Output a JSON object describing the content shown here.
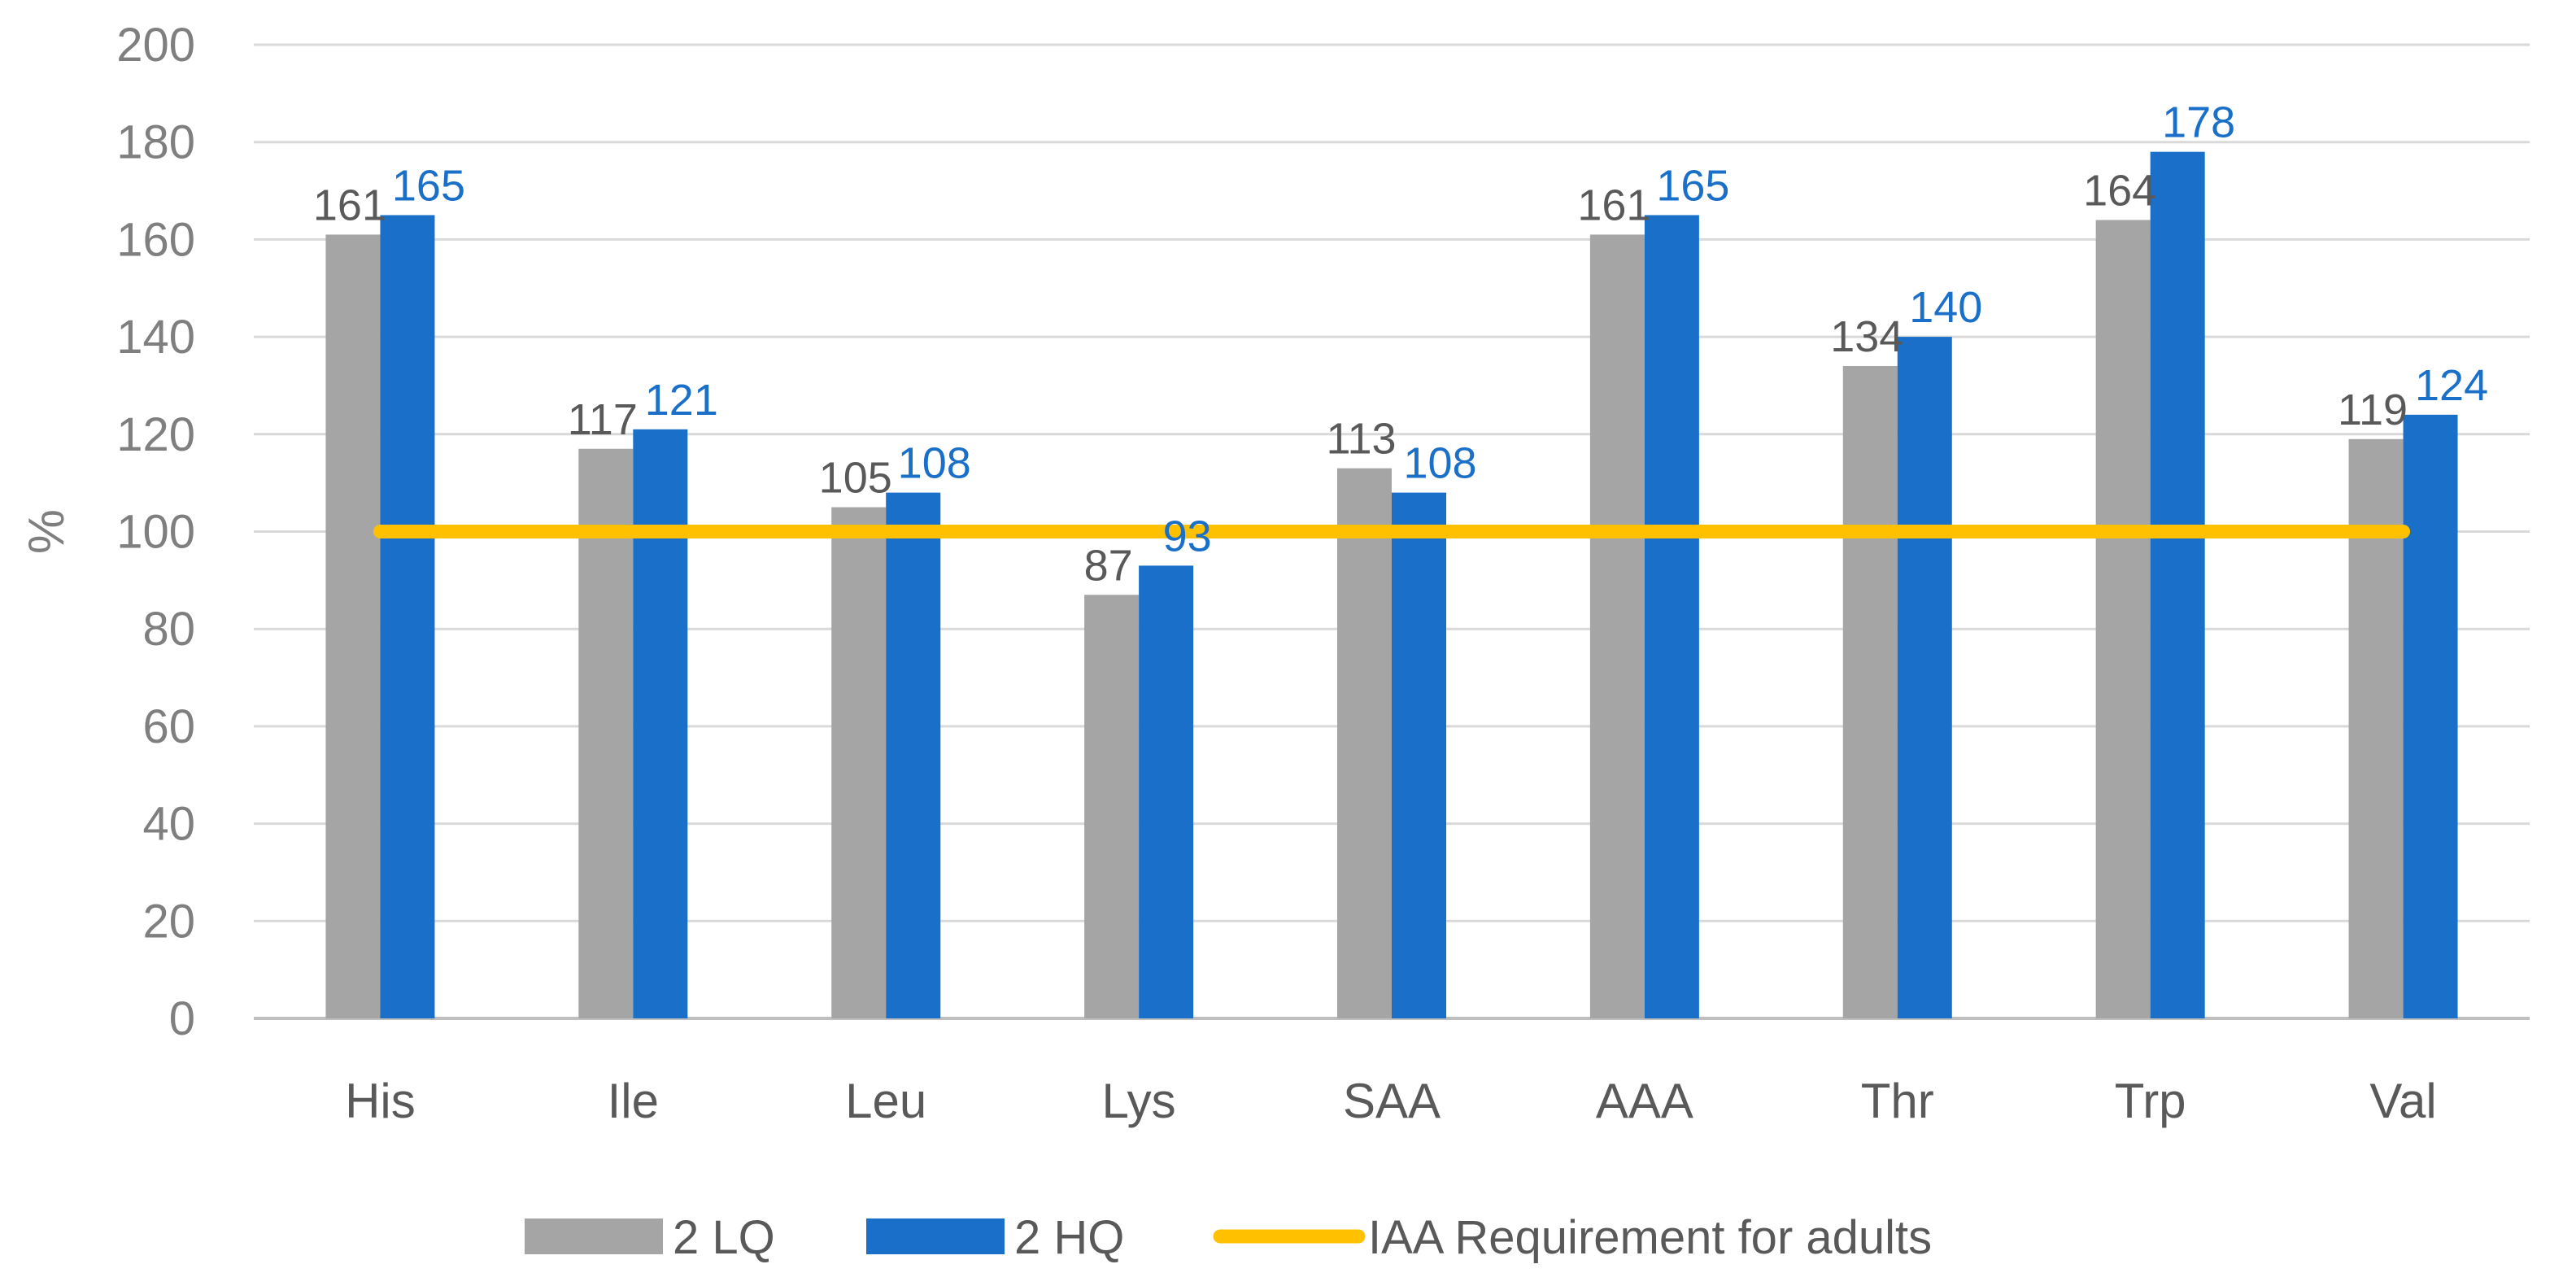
{
  "chart_data": {
    "type": "bar",
    "title": "",
    "xlabel": "",
    "ylabel": "%",
    "ylim": [
      0,
      200
    ],
    "yticks": [
      0,
      20,
      40,
      60,
      80,
      100,
      120,
      140,
      160,
      180,
      200
    ],
    "grid": true,
    "legend_position": "bottom",
    "categories": [
      "His",
      "Ile",
      "Leu",
      "Lys",
      "SAA",
      "AAA",
      "Thr",
      "Trp",
      "Val"
    ],
    "series": [
      {
        "name": "2 LQ",
        "color": "#a5a5a5",
        "values": [
          161,
          117,
          105,
          87,
          113,
          161,
          134,
          164,
          119
        ],
        "labels": [
          "161",
          "117",
          "105",
          "87",
          "113",
          "161",
          "134",
          "164",
          "119"
        ]
      },
      {
        "name": "2 HQ",
        "color": "#1a70c8",
        "values": [
          165,
          121,
          108,
          93,
          108,
          165,
          140,
          178,
          124
        ],
        "labels": [
          "165",
          "121",
          "108",
          "93",
          "108",
          "165",
          "140",
          "178",
          "124"
        ]
      }
    ],
    "reference_line": {
      "name": "IAA Requirement for adults",
      "value": 100,
      "color": "#ffc000"
    }
  }
}
